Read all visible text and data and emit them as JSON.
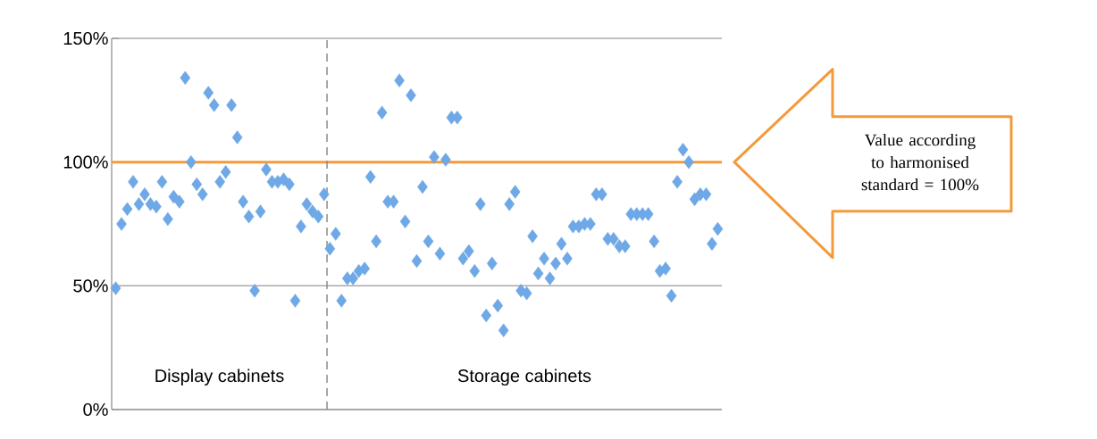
{
  "chart_data": {
    "type": "scatter",
    "categories": [
      null,
      null,
      null,
      null,
      null,
      null,
      null,
      null,
      null,
      null,
      null,
      null,
      null,
      null,
      null,
      null,
      null,
      null,
      null,
      null,
      null,
      null,
      null,
      null,
      null,
      null,
      null,
      null,
      null,
      null,
      null,
      null,
      null,
      null,
      null,
      null,
      null,
      null,
      null,
      null,
      null,
      null,
      null,
      null,
      null,
      null,
      null,
      null,
      null,
      null,
      null,
      null,
      null,
      null,
      null,
      null,
      null,
      null,
      null,
      null,
      null,
      null,
      null,
      null,
      null,
      null,
      null,
      null,
      null,
      null,
      null,
      null,
      null,
      null,
      null,
      null,
      null,
      null,
      null,
      null,
      null,
      null,
      null,
      null,
      null,
      null,
      null,
      null,
      null,
      null,
      null,
      null,
      null,
      null,
      null,
      null,
      null,
      null,
      null,
      null,
      null,
      null,
      null,
      null,
      null
    ],
    "series": [
      {
        "color": "#6fa8e6",
        "values": [
          49,
          75,
          81,
          92,
          83,
          87,
          83,
          82,
          92,
          77,
          86,
          84,
          134,
          100,
          91,
          87,
          128,
          123,
          92,
          96,
          123,
          110,
          84,
          78,
          48,
          80,
          97,
          92,
          92,
          93,
          91,
          44,
          74,
          83,
          80,
          78,
          87,
          65,
          71,
          44,
          53,
          53,
          56,
          57,
          94,
          68,
          120,
          84,
          84,
          133,
          76,
          127,
          60,
          90,
          68,
          102,
          63,
          101,
          118,
          118,
          61,
          64,
          56,
          83,
          38,
          59,
          42,
          32,
          83,
          88,
          48,
          47,
          70,
          55,
          61,
          53,
          59,
          67,
          61,
          74,
          74,
          75,
          75,
          87,
          87,
          69,
          69,
          66,
          66,
          79,
          79,
          79,
          79,
          68,
          56,
          57,
          46,
          92,
          105,
          100,
          85,
          87,
          87,
          67,
          73
        ]
      }
    ],
    "ylim": [
      0,
      150
    ],
    "yticks": [
      {
        "value": 0,
        "label": "0%"
      },
      {
        "value": 50,
        "label": "50%"
      },
      {
        "value": 100,
        "label": "100%"
      },
      {
        "value": 150,
        "label": "150%"
      }
    ],
    "tick_labels": "y",
    "grid": "y",
    "marker": "diamond",
    "ref_lines": [
      {
        "axis": "y",
        "value": 100,
        "color": "#f39a3c",
        "line_style": "solid"
      }
    ],
    "annotations": [
      "Display cabinets",
      "Storage cabinets",
      "Value according to harmonised standard = 100%"
    ]
  }
}
